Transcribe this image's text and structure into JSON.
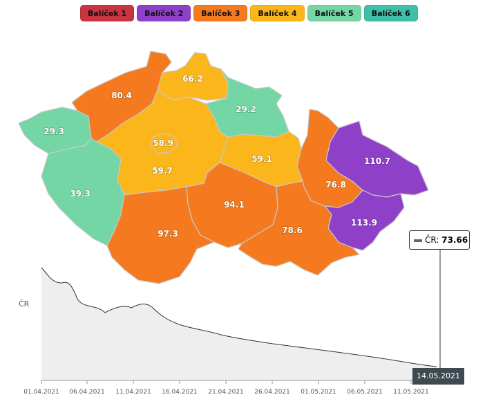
{
  "legend": [
    {
      "label": "Balíček 1",
      "color": "#c9343f"
    },
    {
      "label": "Balíček 2",
      "color": "#8e40c9"
    },
    {
      "label": "Balíček 3",
      "color": "#f57a1f"
    },
    {
      "label": "Balíček 4",
      "color": "#fbb61b"
    },
    {
      "label": "Balíček 5",
      "color": "#74d6a4"
    },
    {
      "label": "Balíček 6",
      "color": "#3fbea8"
    }
  ],
  "regions": [
    {
      "label": "80.4"
    },
    {
      "label": "66.2"
    },
    {
      "label": "29.2"
    },
    {
      "label": "29.3"
    },
    {
      "label": "58.9"
    },
    {
      "label": "59.7"
    },
    {
      "label": "59.1"
    },
    {
      "label": "110.7"
    },
    {
      "label": "76.8"
    },
    {
      "label": "39.3"
    },
    {
      "label": "94.1"
    },
    {
      "label": "97.3"
    },
    {
      "label": "78.6"
    },
    {
      "label": "113.9"
    }
  ],
  "tooltip": {
    "series": "ČR:",
    "value": "73.66"
  },
  "chart": {
    "y_label": "ČR",
    "selected_date": "14.05.2021",
    "x_ticks": [
      "01.04.2021",
      "06.04.2021",
      "11.04.2021",
      "16.04.2021",
      "21.04.2021",
      "26.04.2021",
      "01.05.2021",
      "06.05.2021",
      "11.05.2021"
    ]
  }
}
